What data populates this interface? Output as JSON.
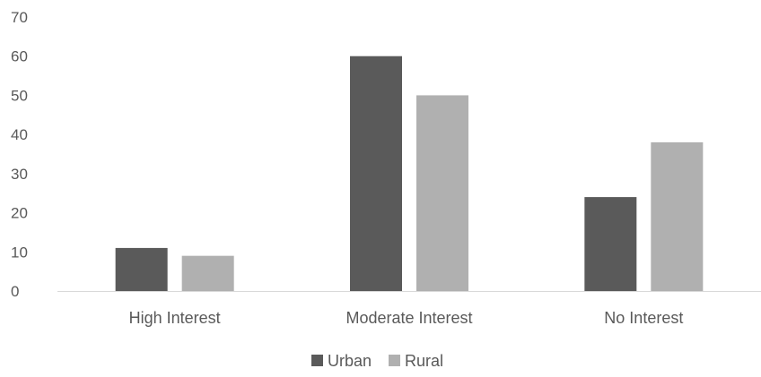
{
  "chart_data": {
    "type": "bar",
    "title": "",
    "xlabel": "",
    "ylabel": "",
    "categories": [
      "High Interest",
      "Moderate Interest",
      "No Interest"
    ],
    "series": [
      {
        "name": "Urban",
        "values": [
          11,
          60,
          24
        ],
        "color": "#5a5a5a"
      },
      {
        "name": "Rural",
        "values": [
          9,
          50,
          38
        ],
        "color": "#b0b0b0"
      }
    ],
    "ylim": [
      0,
      70
    ],
    "yticks": [
      0,
      10,
      20,
      30,
      40,
      50,
      60,
      70
    ],
    "grid": false,
    "legend_position": "bottom"
  }
}
